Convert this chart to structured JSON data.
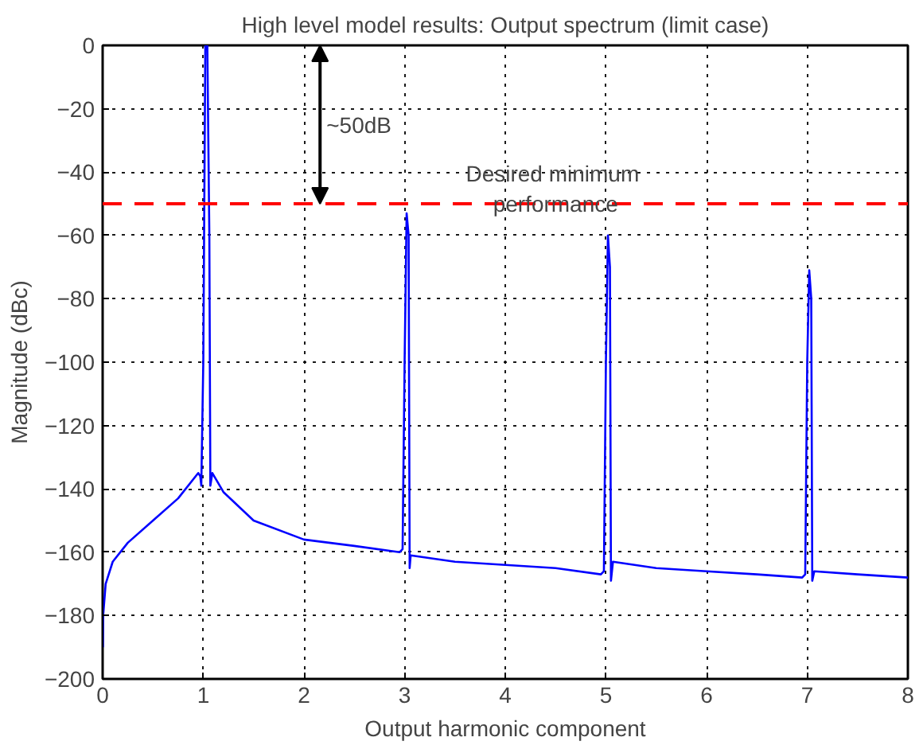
{
  "chart_data": {
    "type": "line",
    "title": "High level model results: Output spectrum (limit case)",
    "xlabel": "Output harmonic component",
    "ylabel": "Magnitude (dBc)",
    "x": [
      0.003,
      0.005,
      0.03,
      0.1,
      0.25,
      0.5,
      0.75,
      0.95,
      0.97,
      0.98,
      1.0,
      1.02,
      1.04,
      1.06,
      1.07,
      1.09,
      1.2,
      1.5,
      2,
      2.5,
      2.95,
      2.98,
      3.0,
      3.02,
      3.04,
      3.05,
      3.06,
      3.5,
      4,
      4.5,
      4.95,
      4.98,
      5.0,
      5.02,
      5.04,
      5.05,
      5.07,
      5.5,
      6,
      6.5,
      6.95,
      6.98,
      7.0,
      7.02,
      7.04,
      7.05,
      7.07,
      7.5,
      8
    ],
    "series": [
      {
        "color": "#0000ff",
        "values": [
          -190,
          -180,
          -170,
          -163,
          -157,
          -150,
          -143,
          -135,
          -136,
          -139,
          -100,
          0,
          0,
          -60,
          -139,
          -135,
          -141,
          -150,
          -156,
          -158,
          -160,
          -159,
          -100,
          -53,
          -60,
          -165,
          -161,
          -163,
          -164,
          -165,
          -167,
          -166,
          -100,
          -60,
          -70,
          -169,
          -163,
          -165,
          -166,
          -167,
          -168,
          -167,
          -100,
          -71,
          -80,
          -169,
          -166,
          -167,
          -168
        ]
      }
    ],
    "xlim": [
      0,
      8
    ],
    "ylim": [
      -200,
      0
    ],
    "xticks": [
      0,
      1,
      2,
      3,
      4,
      5,
      6,
      7,
      8
    ],
    "yticks": [
      -200,
      -180,
      -160,
      -140,
      -120,
      -100,
      -80,
      -60,
      -40,
      -20,
      0
    ],
    "grid": true,
    "marker": "none",
    "line_style": "solid",
    "ref_lines": [
      {
        "axis": "y",
        "value": -50,
        "label": "Desired  minimum performance",
        "color": "#ff0000",
        "line_style": "dashed"
      }
    ],
    "annotations": [
      "~50dB"
    ]
  }
}
